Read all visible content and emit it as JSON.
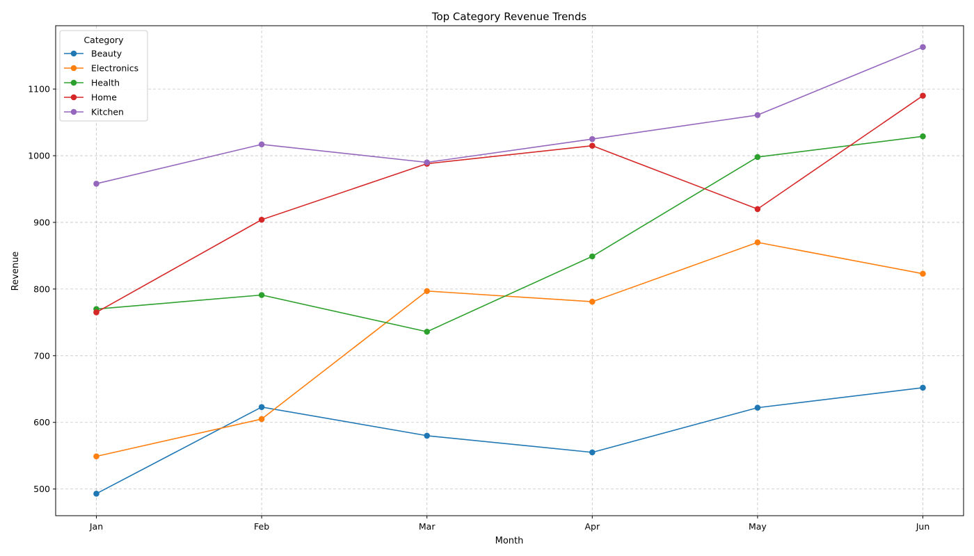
{
  "chart_data": {
    "type": "line",
    "title": "Top Category Revenue Trends",
    "xlabel": "Month",
    "ylabel": "Revenue",
    "categories": [
      "Jan",
      "Feb",
      "Mar",
      "Apr",
      "May",
      "Jun"
    ],
    "ylim": [
      460,
      1195
    ],
    "yticks": [
      500,
      600,
      700,
      800,
      900,
      1000,
      1100
    ],
    "grid": true,
    "legend": {
      "title": "Category",
      "placement": "top-left"
    },
    "series": [
      {
        "name": "Beauty",
        "color": "#1f77b4",
        "values": [
          493,
          623,
          580,
          555,
          622,
          652
        ]
      },
      {
        "name": "Electronics",
        "color": "#ff7f0e",
        "values": [
          549,
          605,
          797,
          781,
          870,
          823
        ]
      },
      {
        "name": "Health",
        "color": "#2ca02c",
        "values": [
          770,
          791,
          736,
          849,
          998,
          1029
        ]
      },
      {
        "name": "Home",
        "color": "#d62728",
        "values": [
          765,
          904,
          988,
          1015,
          920,
          1090
        ]
      },
      {
        "name": "Kitchen",
        "color": "#9467bd",
        "values": [
          958,
          1017,
          990,
          1025,
          1061,
          1163
        ]
      }
    ]
  }
}
